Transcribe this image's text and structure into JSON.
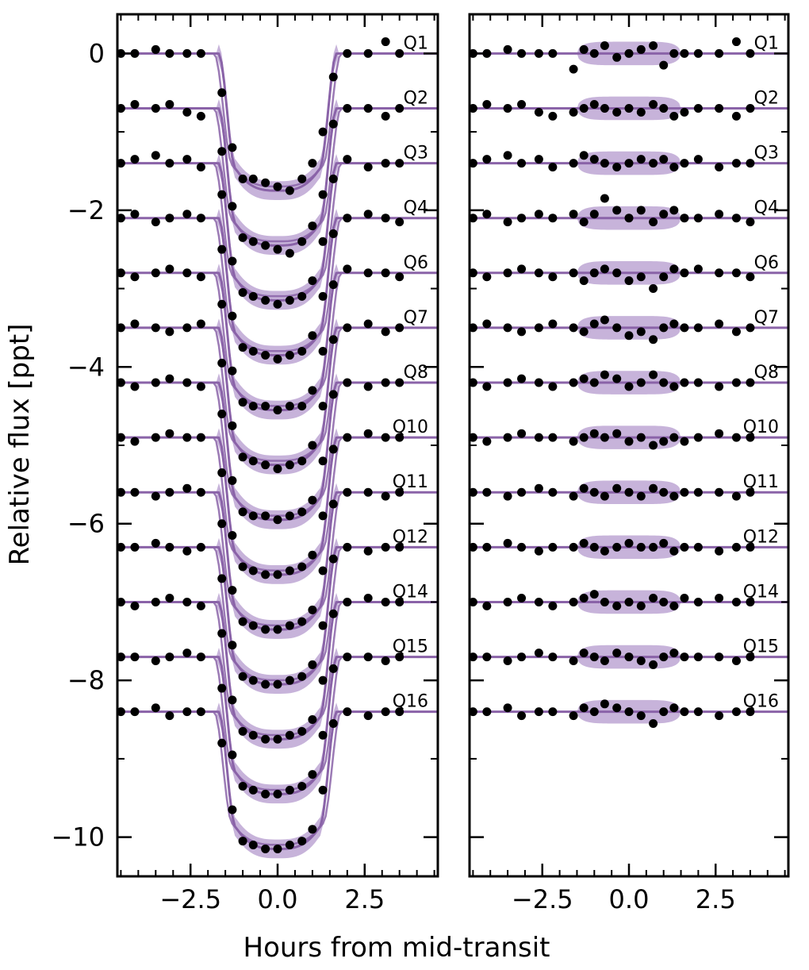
{
  "chart_data": {
    "type": "line",
    "xlabel": "Hours from mid-transit",
    "ylabel": "Relative flux [ppt]",
    "colors": {
      "model": "#8a63a8",
      "band": "#bda6d3",
      "points": "#000000",
      "frame": "#000000"
    },
    "quarters": [
      "Q1",
      "Q2",
      "Q3",
      "Q4",
      "Q6",
      "Q7",
      "Q8",
      "Q10",
      "Q11",
      "Q12",
      "Q14",
      "Q15",
      "Q16"
    ],
    "offset_step_ppt": -0.7,
    "panels": [
      {
        "name": "transit",
        "xlim": [
          -4.6,
          4.6
        ],
        "ylim": [
          -10.5,
          0.5
        ],
        "xticks": [
          -2.5,
          0.0,
          2.5
        ],
        "xtick_labels": [
          "−2.5",
          "0.0",
          "2.5"
        ],
        "yticks": [
          0,
          -2,
          -4,
          -6,
          -8,
          -10
        ],
        "ytick_labels": [
          "0",
          "−2",
          "−4",
          "−6",
          "−8",
          "−10"
        ],
        "model": {
          "depth_ppt": 1.75,
          "t14_hours": 3.4,
          "ingress_hours": 0.5
        },
        "points_x": [
          -4.5,
          -4.1,
          -3.5,
          -3.1,
          -2.6,
          -2.2,
          -1.6,
          -1.3,
          -1.0,
          -0.7,
          -0.35,
          0.0,
          0.35,
          0.7,
          1.0,
          1.3,
          1.6,
          2.0,
          2.6,
          3.1,
          3.5
        ],
        "points_y": [
          [
            0.0,
            0.0,
            0.05,
            0.0,
            0.0,
            0.0,
            -0.5,
            -1.2,
            -1.6,
            -1.6,
            -1.65,
            -1.7,
            -1.75,
            -1.6,
            -1.4,
            -1.0,
            -0.3,
            0.0,
            0.0,
            0.15,
            0.0
          ],
          [
            -0.7,
            -0.65,
            -0.7,
            -0.65,
            -0.75,
            -0.8,
            -1.25,
            -1.95,
            -2.35,
            -2.4,
            -2.45,
            -2.5,
            -2.55,
            -2.4,
            -2.2,
            -1.8,
            -0.9,
            -0.7,
            -0.7,
            -0.8,
            -0.7
          ],
          [
            -1.4,
            -1.35,
            -1.3,
            -1.4,
            -1.35,
            -1.45,
            -1.8,
            -2.65,
            -3.05,
            -3.1,
            -3.15,
            -3.2,
            -3.15,
            -3.1,
            -2.9,
            -2.4,
            -1.6,
            -1.35,
            -1.45,
            -1.4,
            -1.4
          ],
          [
            -2.1,
            -2.05,
            -2.15,
            -2.1,
            -2.05,
            -2.1,
            -2.5,
            -3.35,
            -3.75,
            -3.8,
            -3.85,
            -3.9,
            -3.85,
            -3.8,
            -3.6,
            -3.1,
            -2.3,
            -2.1,
            -2.05,
            -2.1,
            -2.15
          ],
          [
            -2.8,
            -2.85,
            -2.8,
            -2.75,
            -2.8,
            -2.85,
            -3.2,
            -4.05,
            -4.45,
            -4.5,
            -4.5,
            -4.55,
            -4.5,
            -4.5,
            -4.3,
            -3.8,
            -2.95,
            -2.75,
            -2.8,
            -2.8,
            -2.85
          ],
          [
            -3.5,
            -3.45,
            -3.5,
            -3.55,
            -3.5,
            -3.45,
            -3.95,
            -4.75,
            -5.15,
            -5.2,
            -5.25,
            -5.3,
            -5.25,
            -5.2,
            -5.0,
            -4.5,
            -3.65,
            -3.5,
            -3.45,
            -3.55,
            -3.5
          ],
          [
            -4.2,
            -4.25,
            -4.2,
            -4.15,
            -4.2,
            -4.25,
            -4.6,
            -5.45,
            -5.85,
            -5.9,
            -5.9,
            -5.95,
            -5.9,
            -5.85,
            -5.7,
            -5.2,
            -4.35,
            -4.2,
            -4.25,
            -4.2,
            -4.2
          ],
          [
            -4.9,
            -4.95,
            -4.9,
            -4.85,
            -4.9,
            -4.9,
            -5.35,
            -6.15,
            -6.55,
            -6.6,
            -6.65,
            -6.65,
            -6.6,
            -6.55,
            -6.4,
            -5.9,
            -5.05,
            -4.9,
            -4.85,
            -4.9,
            -4.9
          ],
          [
            -5.6,
            -5.6,
            -5.65,
            -5.6,
            -5.55,
            -5.6,
            -6.0,
            -6.85,
            -7.25,
            -7.3,
            -7.35,
            -7.35,
            -7.3,
            -7.25,
            -7.1,
            -6.6,
            -5.75,
            -5.6,
            -5.6,
            -5.65,
            -5.6
          ],
          [
            -6.3,
            -6.3,
            -6.25,
            -6.3,
            -6.35,
            -6.3,
            -6.7,
            -7.55,
            -7.95,
            -8.0,
            -8.05,
            -8.05,
            -8.0,
            -7.95,
            -7.8,
            -7.3,
            -6.45,
            -6.3,
            -6.35,
            -6.3,
            -6.3
          ],
          [
            -7.0,
            -7.05,
            -7.0,
            -6.95,
            -7.0,
            -7.05,
            -7.4,
            -8.25,
            -8.65,
            -8.7,
            -8.75,
            -8.75,
            -8.7,
            -8.65,
            -8.5,
            -8.0,
            -7.15,
            -7.0,
            -6.95,
            -7.0,
            -7.0
          ],
          [
            -7.7,
            -7.7,
            -7.75,
            -7.7,
            -7.65,
            -7.7,
            -8.1,
            -8.95,
            -9.35,
            -9.4,
            -9.45,
            -9.45,
            -9.4,
            -9.35,
            -9.2,
            -8.7,
            -7.85,
            -7.7,
            -7.7,
            -7.75,
            -7.7
          ],
          [
            -8.4,
            -8.4,
            -8.35,
            -8.45,
            -8.4,
            -8.4,
            -8.8,
            -9.65,
            -10.05,
            -10.1,
            -10.15,
            -10.15,
            -10.1,
            -10.05,
            -9.9,
            -9.4,
            -8.55,
            -8.4,
            -8.45,
            -8.4,
            -8.4
          ]
        ]
      },
      {
        "name": "residuals",
        "xlim": [
          -4.6,
          4.6
        ],
        "ylim": [
          -10.5,
          0.5
        ],
        "xticks": [
          -2.5,
          0.0,
          2.5
        ],
        "xtick_labels": [
          "−2.5",
          "0.0",
          "2.5"
        ],
        "yticks": [
          0,
          -2,
          -4,
          -6,
          -8,
          -10
        ],
        "model": {
          "depth_ppt": 0.0,
          "band_halfwidth_ppt": 0.15,
          "band_extent_hours": 1.5
        },
        "points_x": [
          -4.5,
          -4.1,
          -3.5,
          -3.1,
          -2.6,
          -2.2,
          -1.6,
          -1.3,
          -1.0,
          -0.7,
          -0.35,
          0.0,
          0.35,
          0.7,
          1.0,
          1.3,
          1.6,
          2.0,
          2.6,
          3.1,
          3.5
        ],
        "points_y": [
          [
            0.0,
            0.0,
            0.05,
            0.0,
            0.0,
            0.0,
            -0.2,
            0.05,
            0.0,
            0.1,
            -0.05,
            0.0,
            0.05,
            0.1,
            -0.15,
            0.0,
            0.0,
            0.0,
            0.0,
            0.15,
            0.0
          ],
          [
            -0.7,
            -0.65,
            -0.7,
            -0.65,
            -0.75,
            -0.8,
            -0.75,
            -0.7,
            -0.65,
            -0.7,
            -0.75,
            -0.7,
            -0.75,
            -0.65,
            -0.7,
            -0.8,
            -0.75,
            -0.7,
            -0.7,
            -0.8,
            -0.7
          ],
          [
            -1.4,
            -1.35,
            -1.3,
            -1.4,
            -1.35,
            -1.45,
            -1.4,
            -1.3,
            -1.35,
            -1.4,
            -1.45,
            -1.4,
            -1.35,
            -1.4,
            -1.35,
            -1.45,
            -1.4,
            -1.35,
            -1.45,
            -1.4,
            -1.4
          ],
          [
            -2.1,
            -2.05,
            -2.15,
            -2.1,
            -2.05,
            -2.1,
            -2.05,
            -2.15,
            -2.05,
            -1.85,
            -2.0,
            -2.1,
            -2.0,
            -2.15,
            -2.05,
            -2.0,
            -2.1,
            -2.1,
            -2.05,
            -2.1,
            -2.15
          ],
          [
            -2.8,
            -2.85,
            -2.8,
            -2.75,
            -2.8,
            -2.85,
            -2.8,
            -2.9,
            -2.8,
            -2.75,
            -2.8,
            -2.9,
            -2.85,
            -3.0,
            -2.85,
            -2.75,
            -2.8,
            -2.75,
            -2.8,
            -2.8,
            -2.85
          ],
          [
            -3.5,
            -3.45,
            -3.5,
            -3.55,
            -3.5,
            -3.45,
            -3.5,
            -3.55,
            -3.45,
            -3.4,
            -3.5,
            -3.6,
            -3.55,
            -3.65,
            -3.5,
            -3.45,
            -3.5,
            -3.5,
            -3.45,
            -3.55,
            -3.5
          ],
          [
            -4.2,
            -4.25,
            -4.2,
            -4.15,
            -4.2,
            -4.25,
            -4.2,
            -4.15,
            -4.2,
            -4.1,
            -4.15,
            -4.25,
            -4.2,
            -4.1,
            -4.2,
            -4.25,
            -4.2,
            -4.2,
            -4.25,
            -4.2,
            -4.2
          ],
          [
            -4.9,
            -4.95,
            -4.9,
            -4.85,
            -4.9,
            -4.9,
            -4.95,
            -4.9,
            -4.85,
            -4.9,
            -4.85,
            -4.95,
            -4.9,
            -5.0,
            -4.95,
            -4.9,
            -4.95,
            -4.9,
            -4.85,
            -4.9,
            -4.9
          ],
          [
            -5.6,
            -5.6,
            -5.65,
            -5.6,
            -5.55,
            -5.6,
            -5.65,
            -5.55,
            -5.6,
            -5.65,
            -5.55,
            -5.6,
            -5.65,
            -5.55,
            -5.6,
            -5.65,
            -5.6,
            -5.6,
            -5.6,
            -5.65,
            -5.6
          ],
          [
            -6.3,
            -6.3,
            -6.25,
            -6.3,
            -6.35,
            -6.3,
            -6.3,
            -6.25,
            -6.3,
            -6.35,
            -6.3,
            -6.25,
            -6.3,
            -6.3,
            -6.25,
            -6.35,
            -6.3,
            -6.3,
            -6.35,
            -6.3,
            -6.3
          ],
          [
            -7.0,
            -7.05,
            -7.0,
            -6.95,
            -7.0,
            -7.05,
            -7.0,
            -6.95,
            -6.9,
            -7.0,
            -7.05,
            -7.0,
            -7.05,
            -6.95,
            -7.0,
            -7.05,
            -6.95,
            -7.0,
            -6.95,
            -7.0,
            -7.0
          ],
          [
            -7.7,
            -7.7,
            -7.75,
            -7.7,
            -7.65,
            -7.7,
            -7.75,
            -7.65,
            -7.7,
            -7.75,
            -7.65,
            -7.7,
            -7.75,
            -7.8,
            -7.7,
            -7.65,
            -7.7,
            -7.7,
            -7.7,
            -7.75,
            -7.7
          ],
          [
            -8.4,
            -8.4,
            -8.35,
            -8.45,
            -8.4,
            -8.4,
            -8.45,
            -8.35,
            -8.4,
            -8.3,
            -8.35,
            -8.4,
            -8.45,
            -8.55,
            -8.4,
            -8.35,
            -8.4,
            -8.4,
            -8.45,
            -8.4,
            -8.4
          ]
        ]
      }
    ]
  }
}
